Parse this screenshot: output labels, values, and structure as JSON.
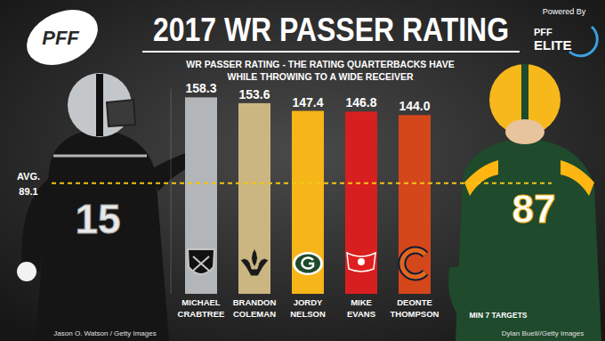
{
  "chart_data": {
    "type": "bar",
    "title": "2017 WR PASSER RATING",
    "subtitle": [
      "WR PASSER RATING - THE RATING QUARTERBACKS HAVE",
      "WHILE THROWING TO A WIDE RECEIVER"
    ],
    "categories": [
      "MICHAEL CRABTREE",
      "BRANDON COLEMAN",
      "JORDY NELSON",
      "MIKE EVANS",
      "DEONTE THOMPSON"
    ],
    "values": [
      158.3,
      153.6,
      147.4,
      146.8,
      144.0
    ],
    "value_labels": [
      "158.3",
      "153.6",
      "147.4",
      "146.8",
      "144.0"
    ],
    "colors": [
      "#b3b6b8",
      "#cbb682",
      "#f6b519",
      "#d81f1f",
      "#d4471b"
    ],
    "ylim": [
      0,
      165
    ],
    "yticks": [],
    "tick_labels": false,
    "grid": false,
    "data_labels": true,
    "reference_line": {
      "label": "AVG.",
      "value": 89.1
    },
    "footnote": "MIN 7 TARGETS",
    "credits": [
      "Jason O. Watson / Getty Images",
      "Dylan Buell//Getty Images"
    ],
    "branding": {
      "logo": "PFF",
      "powered_by": "Powered By",
      "product": [
        "PFF",
        "ELITE"
      ]
    },
    "jersey_numbers": [
      "15",
      "87"
    ]
  }
}
